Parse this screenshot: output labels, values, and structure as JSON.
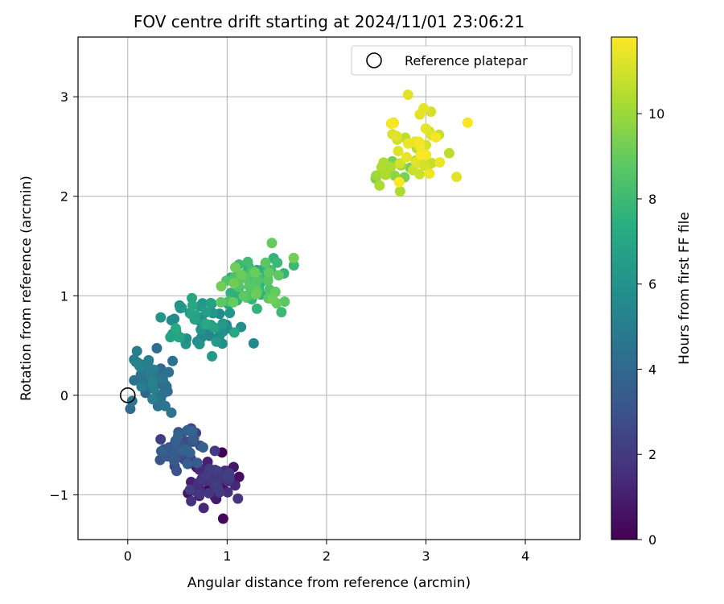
{
  "chart_data": {
    "type": "scatter",
    "title": "FOV centre drift starting at 2024/11/01 23:06:21",
    "xlabel": "Angular distance from reference (arcmin)",
    "ylabel": "Rotation from reference (arcmin)",
    "xlim": [
      -0.5,
      4.55
    ],
    "ylim": [
      -1.45,
      3.6
    ],
    "xticks": [
      0,
      1,
      2,
      3,
      4
    ],
    "yticks": [
      -1,
      0,
      1,
      2,
      3
    ],
    "grid": true,
    "legend": {
      "position": "top-right",
      "entries": [
        "Reference platepar"
      ]
    },
    "reference_point": {
      "x": 0,
      "y": 0
    },
    "colorbar": {
      "label": "Hours from first FF file",
      "range": [
        0,
        11.8
      ],
      "ticks": [
        0,
        2,
        4,
        6,
        8,
        10
      ],
      "colormap": "viridis"
    },
    "clusters": [
      {
        "hours": [
          0,
          2.2
        ],
        "x_center": 0.85,
        "y_center": -0.85,
        "x_spread": 0.12,
        "y_spread": 0.12,
        "count": 60
      },
      {
        "hours": [
          2.2,
          3.8
        ],
        "x_center": 0.55,
        "y_center": -0.55,
        "x_spread": 0.1,
        "y_spread": 0.12,
        "count": 45
      },
      {
        "hours": [
          3.8,
          5.3
        ],
        "x_center": 0.25,
        "y_center": 0.15,
        "x_spread": 0.12,
        "y_spread": 0.15,
        "count": 50
      },
      {
        "hours": [
          5.3,
          7.2
        ],
        "x_center": 0.75,
        "y_center": 0.7,
        "x_spread": 0.2,
        "y_spread": 0.12,
        "count": 55
      },
      {
        "hours": [
          7.2,
          9.2
        ],
        "x_center": 1.25,
        "y_center": 1.1,
        "x_spread": 0.17,
        "y_spread": 0.13,
        "count": 70
      },
      {
        "hours": [
          9.2,
          10.4
        ],
        "x_center": 2.6,
        "y_center": 2.2,
        "x_spread": 0.12,
        "y_spread": 0.1,
        "count": 15
      },
      {
        "hours": [
          10.4,
          11.8
        ],
        "x_center": 2.9,
        "y_center": 2.5,
        "x_spread": 0.15,
        "y_spread": 0.17,
        "count": 40
      }
    ],
    "points": [
      {
        "x": 0.96,
        "y": -1.24,
        "hours": 0.2
      },
      {
        "x": 1.12,
        "y": -0.82,
        "hours": 0.5
      },
      {
        "x": 2.82,
        "y": 3.02,
        "hours": 11.3
      },
      {
        "x": 3.42,
        "y": 2.74,
        "hours": 11.7
      },
      {
        "x": 3.05,
        "y": 2.85,
        "hours": 11.0
      },
      {
        "x": 2.74,
        "y": 2.05,
        "hours": 10.3
      },
      {
        "x": 1.45,
        "y": 1.53,
        "hours": 9.0
      },
      {
        "x": 1.67,
        "y": 1.38,
        "hours": 9.2
      }
    ]
  }
}
